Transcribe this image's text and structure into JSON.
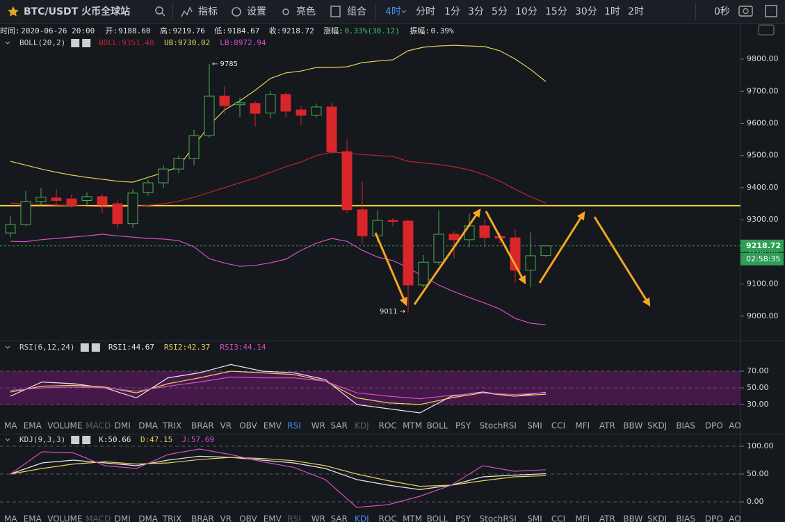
{
  "toolbar": {
    "symbol": "BTC/USDT 火币全球站",
    "buttons": [
      "指标",
      "设置",
      "亮色",
      "组合"
    ],
    "period_active": "4时",
    "periods": [
      "分时",
      "1分",
      "3分",
      "5分",
      "10分",
      "15分",
      "30分",
      "1时",
      "2时"
    ],
    "timer": "0秒"
  },
  "info": [
    {
      "label": "时间:",
      "value": "2020-06-26 20:00"
    },
    {
      "label": "开:",
      "value": "9188.60"
    },
    {
      "label": "高:",
      "value": "9219.76"
    },
    {
      "label": "低:",
      "value": "9184.67"
    },
    {
      "label": "收:",
      "value": "9218.72"
    },
    {
      "label": "涨幅:",
      "value": "0.33%(30.12)",
      "color": "#3fbf6a"
    },
    {
      "label": "振幅:",
      "value": "0.39%"
    }
  ],
  "indicator_tabs": {
    "items": [
      "MA",
      "EMA",
      "VOLUME",
      "MACD",
      "DMI",
      "DMA",
      "TRIX",
      "BRAR",
      "VR",
      "OBV",
      "EMV",
      "RSI",
      "WR",
      "SAR",
      "KDJ",
      "ROC",
      "MTM",
      "BOLL",
      "PSY",
      "StochRSI",
      "SMI",
      "CCI",
      "MFI",
      "ATR",
      "BBW",
      "SKDJ",
      "BIAS",
      "DPO",
      "AO"
    ],
    "active_top": "RSI",
    "dim_top": [
      "MACD",
      "KDJ"
    ],
    "active_bottom": "KDJ",
    "dim_bottom": [
      "MACD",
      "RSI"
    ]
  },
  "chart_data": [
    {
      "type": "candlestick",
      "indicator": "BOLL(20,2)",
      "up_color": "#4caf50",
      "down_color": "#d9262b",
      "ylim": [
        8924,
        9865
      ],
      "yticks": [
        {
          "value": 9000,
          "label": "9000.00"
        },
        {
          "value": 9100,
          "label": "9100.00"
        },
        {
          "value": 9200,
          "label": "9200.00"
        },
        {
          "value": 9300,
          "label": "9300.00"
        },
        {
          "value": 9400,
          "label": "9400.00"
        },
        {
          "value": 9500,
          "label": "9500.00"
        },
        {
          "value": 9600,
          "label": "9600.00"
        },
        {
          "value": 9700,
          "label": "9700.00"
        },
        {
          "value": 9800,
          "label": "9800.00"
        }
      ],
      "candles": [
        {
          "o": 9259,
          "h": 9310,
          "l": 9245,
          "c": 9285
        },
        {
          "o": 9285,
          "h": 9390,
          "l": 9280,
          "c": 9357
        },
        {
          "o": 9357,
          "h": 9400,
          "l": 9345,
          "c": 9370
        },
        {
          "o": 9368,
          "h": 9395,
          "l": 9340,
          "c": 9360
        },
        {
          "o": 9365,
          "h": 9380,
          "l": 9335,
          "c": 9345
        },
        {
          "o": 9360,
          "h": 9385,
          "l": 9340,
          "c": 9372
        },
        {
          "o": 9372,
          "h": 9380,
          "l": 9320,
          "c": 9346
        },
        {
          "o": 9350,
          "h": 9360,
          "l": 9270,
          "c": 9288
        },
        {
          "o": 9288,
          "h": 9395,
          "l": 9275,
          "c": 9383
        },
        {
          "o": 9385,
          "h": 9425,
          "l": 9375,
          "c": 9415
        },
        {
          "o": 9415,
          "h": 9470,
          "l": 9400,
          "c": 9458
        },
        {
          "o": 9458,
          "h": 9500,
          "l": 9445,
          "c": 9490
        },
        {
          "o": 9490,
          "h": 9580,
          "l": 9470,
          "c": 9562
        },
        {
          "o": 9562,
          "h": 9785,
          "l": 9555,
          "c": 9685
        },
        {
          "o": 9685,
          "h": 9715,
          "l": 9630,
          "c": 9655
        },
        {
          "o": 9658,
          "h": 9680,
          "l": 9620,
          "c": 9664
        },
        {
          "o": 9662,
          "h": 9670,
          "l": 9590,
          "c": 9631
        },
        {
          "o": 9632,
          "h": 9700,
          "l": 9615,
          "c": 9690
        },
        {
          "o": 9690,
          "h": 9695,
          "l": 9620,
          "c": 9638
        },
        {
          "o": 9642,
          "h": 9655,
          "l": 9595,
          "c": 9625
        },
        {
          "o": 9625,
          "h": 9662,
          "l": 9618,
          "c": 9651
        },
        {
          "o": 9651,
          "h": 9665,
          "l": 9505,
          "c": 9512
        },
        {
          "o": 9512,
          "h": 9550,
          "l": 9320,
          "c": 9331
        },
        {
          "o": 9331,
          "h": 9420,
          "l": 9225,
          "c": 9250
        },
        {
          "o": 9250,
          "h": 9330,
          "l": 9230,
          "c": 9298
        },
        {
          "o": 9298,
          "h": 9305,
          "l": 9280,
          "c": 9295
        },
        {
          "o": 9296,
          "h": 9300,
          "l": 9011,
          "c": 9097
        },
        {
          "o": 9097,
          "h": 9190,
          "l": 9090,
          "c": 9168
        },
        {
          "o": 9168,
          "h": 9330,
          "l": 9160,
          "c": 9255
        },
        {
          "o": 9255,
          "h": 9265,
          "l": 9180,
          "c": 9238
        },
        {
          "o": 9238,
          "h": 9320,
          "l": 9215,
          "c": 9281
        },
        {
          "o": 9281,
          "h": 9300,
          "l": 9215,
          "c": 9245
        },
        {
          "o": 9248,
          "h": 9260,
          "l": 9225,
          "c": 9243
        },
        {
          "o": 9244,
          "h": 9270,
          "l": 9105,
          "c": 9143
        },
        {
          "o": 9143,
          "h": 9260,
          "l": 9090,
          "c": 9188
        },
        {
          "o": 9188.6,
          "h": 9219.76,
          "l": 9184.67,
          "c": 9218.72
        }
      ],
      "series": [
        {
          "label": "BOLL:9351.48",
          "color": "#b8262e",
          "values": [
            9352,
            9350,
            9348,
            9346,
            9344,
            9342,
            9340,
            9340,
            9341,
            9345,
            9350,
            9358,
            9370,
            9385,
            9400,
            9415,
            9430,
            9448,
            9465,
            9480,
            9500,
            9510,
            9508,
            9503,
            9500,
            9497,
            9482,
            9477,
            9472,
            9465,
            9455,
            9440,
            9420,
            9395,
            9372,
            9351.48
          ]
        },
        {
          "label": "UB:9730.02",
          "color": "#e6d35a",
          "values": [
            9482,
            9470,
            9458,
            9448,
            9439,
            9432,
            9426,
            9420,
            9417,
            9432,
            9447,
            9465,
            9530,
            9594,
            9642,
            9670,
            9703,
            9740,
            9757,
            9763,
            9774,
            9774,
            9776,
            9789,
            9794,
            9798,
            9826,
            9837,
            9841,
            9843,
            9841,
            9839,
            9826,
            9800,
            9768,
            9730.02
          ]
        },
        {
          "label": "LB:8972.94",
          "color": "#d44fc8",
          "values": [
            9233,
            9232,
            9238,
            9242,
            9246,
            9250,
            9255,
            9250,
            9246,
            9242,
            9240,
            9235,
            9216,
            9179,
            9165,
            9155,
            9158,
            9166,
            9177,
            9205,
            9227,
            9242,
            9233,
            9205,
            9184,
            9173,
            9151,
            9123,
            9097,
            9076,
            9058,
            9041,
            9022,
            8993,
            8978,
            8972.94
          ]
        }
      ],
      "hline": {
        "value": 9344,
        "color": "#f2d33a"
      },
      "last_price": {
        "value": 9218.72,
        "label": "9218.72",
        "countdown": "02:58:35",
        "color": "#2e9e55"
      },
      "annotations": [
        {
          "value": 9785,
          "label": "← 9785",
          "at": 13
        },
        {
          "value": 9011,
          "label": "9011 →",
          "at": 26
        }
      ]
    },
    {
      "type": "line",
      "indicator": "RSI(6,12,24)",
      "ylim": [
        10.8,
        102.5
      ],
      "yticks": [
        {
          "value": 30,
          "label": "30.00"
        },
        {
          "value": 50,
          "label": "50.00"
        },
        {
          "value": 70,
          "label": "70.00"
        }
      ],
      "band": [
        30,
        70
      ],
      "series": [
        {
          "label": "RSI1:44.67",
          "color": "#e8e8e8",
          "values": [
            40,
            57,
            55,
            50,
            38,
            62,
            68,
            78,
            70,
            68,
            60,
            30,
            25,
            20,
            40,
            45,
            40,
            44.67
          ]
        },
        {
          "label": "RSI2:42.37",
          "color": "#e6d35a",
          "values": [
            45,
            52,
            53,
            51,
            44,
            55,
            62,
            70,
            68,
            66,
            58,
            38,
            32,
            30,
            38,
            44,
            40,
            42.37
          ]
        },
        {
          "label": "RSI3:44.14",
          "color": "#d44fc8",
          "values": [
            47,
            50,
            51,
            50,
            46,
            52,
            57,
            63,
            62,
            62,
            58,
            44,
            40,
            37,
            41,
            44,
            42,
            44.14
          ]
        }
      ]
    },
    {
      "type": "line",
      "indicator": "KDJ(9,3,3)",
      "ylim": [
        -36.25,
        117.5
      ],
      "yticks": [
        {
          "value": 0,
          "label": "0.00"
        },
        {
          "value": 50,
          "label": "50.00"
        },
        {
          "value": 100,
          "label": "100.00"
        }
      ],
      "series": [
        {
          "label": "K:50.66",
          "color": "#e8e8e8",
          "values": [
            50,
            70,
            75,
            70,
            65,
            75,
            82,
            80,
            75,
            70,
            60,
            40,
            30,
            22,
            30,
            45,
            48,
            50.66
          ]
        },
        {
          "label": "D:47.15",
          "color": "#e6d35a",
          "values": [
            50,
            60,
            68,
            72,
            68,
            70,
            76,
            80,
            78,
            74,
            65,
            50,
            38,
            28,
            30,
            38,
            45,
            47.15
          ]
        },
        {
          "label": "J:57.69",
          "color": "#d44fc8",
          "values": [
            50,
            90,
            88,
            65,
            60,
            85,
            95,
            85,
            72,
            62,
            40,
            -10,
            -5,
            10,
            30,
            65,
            55,
            57.69
          ]
        }
      ]
    }
  ]
}
